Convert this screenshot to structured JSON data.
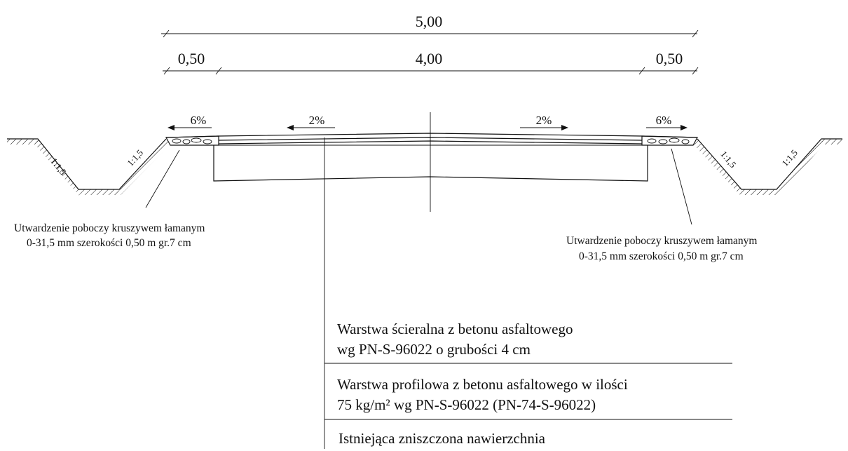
{
  "dimensions": {
    "total": "5,00",
    "shoulder_left": "0,50",
    "carriageway": "4,00",
    "shoulder_right": "0,50"
  },
  "slopes": {
    "shoulder_left": "6%",
    "lane_left": "2%",
    "lane_right": "2%",
    "shoulder_right": "6%"
  },
  "ditch_ratios": {
    "left_outer": "1:1,5",
    "left_inner": "1:1,5",
    "right_inner": "1:1,5",
    "right_outer": "1:1,5"
  },
  "notes": {
    "left": {
      "line1": "Utwardzenie poboczy kruszywem łamanym",
      "line2": "0-31,5 mm szerokości 0,50 m gr.7 cm"
    },
    "right": {
      "line1": "Utwardzenie poboczy kruszywem łamanym",
      "line2": "0-31,5 mm szerokości 0,50 m gr.7 cm"
    }
  },
  "layers": [
    {
      "line1": "Warstwa ścieralna z betonu asfaltowego",
      "line2": "wg PN-S-96022 o grubości 4 cm"
    },
    {
      "line1": "Warstwa profilowa z betonu asfaltowego w ilości",
      "line2": "75 kg/m² wg PN-S-96022 (PN-74-S-96022)"
    },
    {
      "line1": "Istniejąca  zniszczona nawierzchnia"
    }
  ]
}
